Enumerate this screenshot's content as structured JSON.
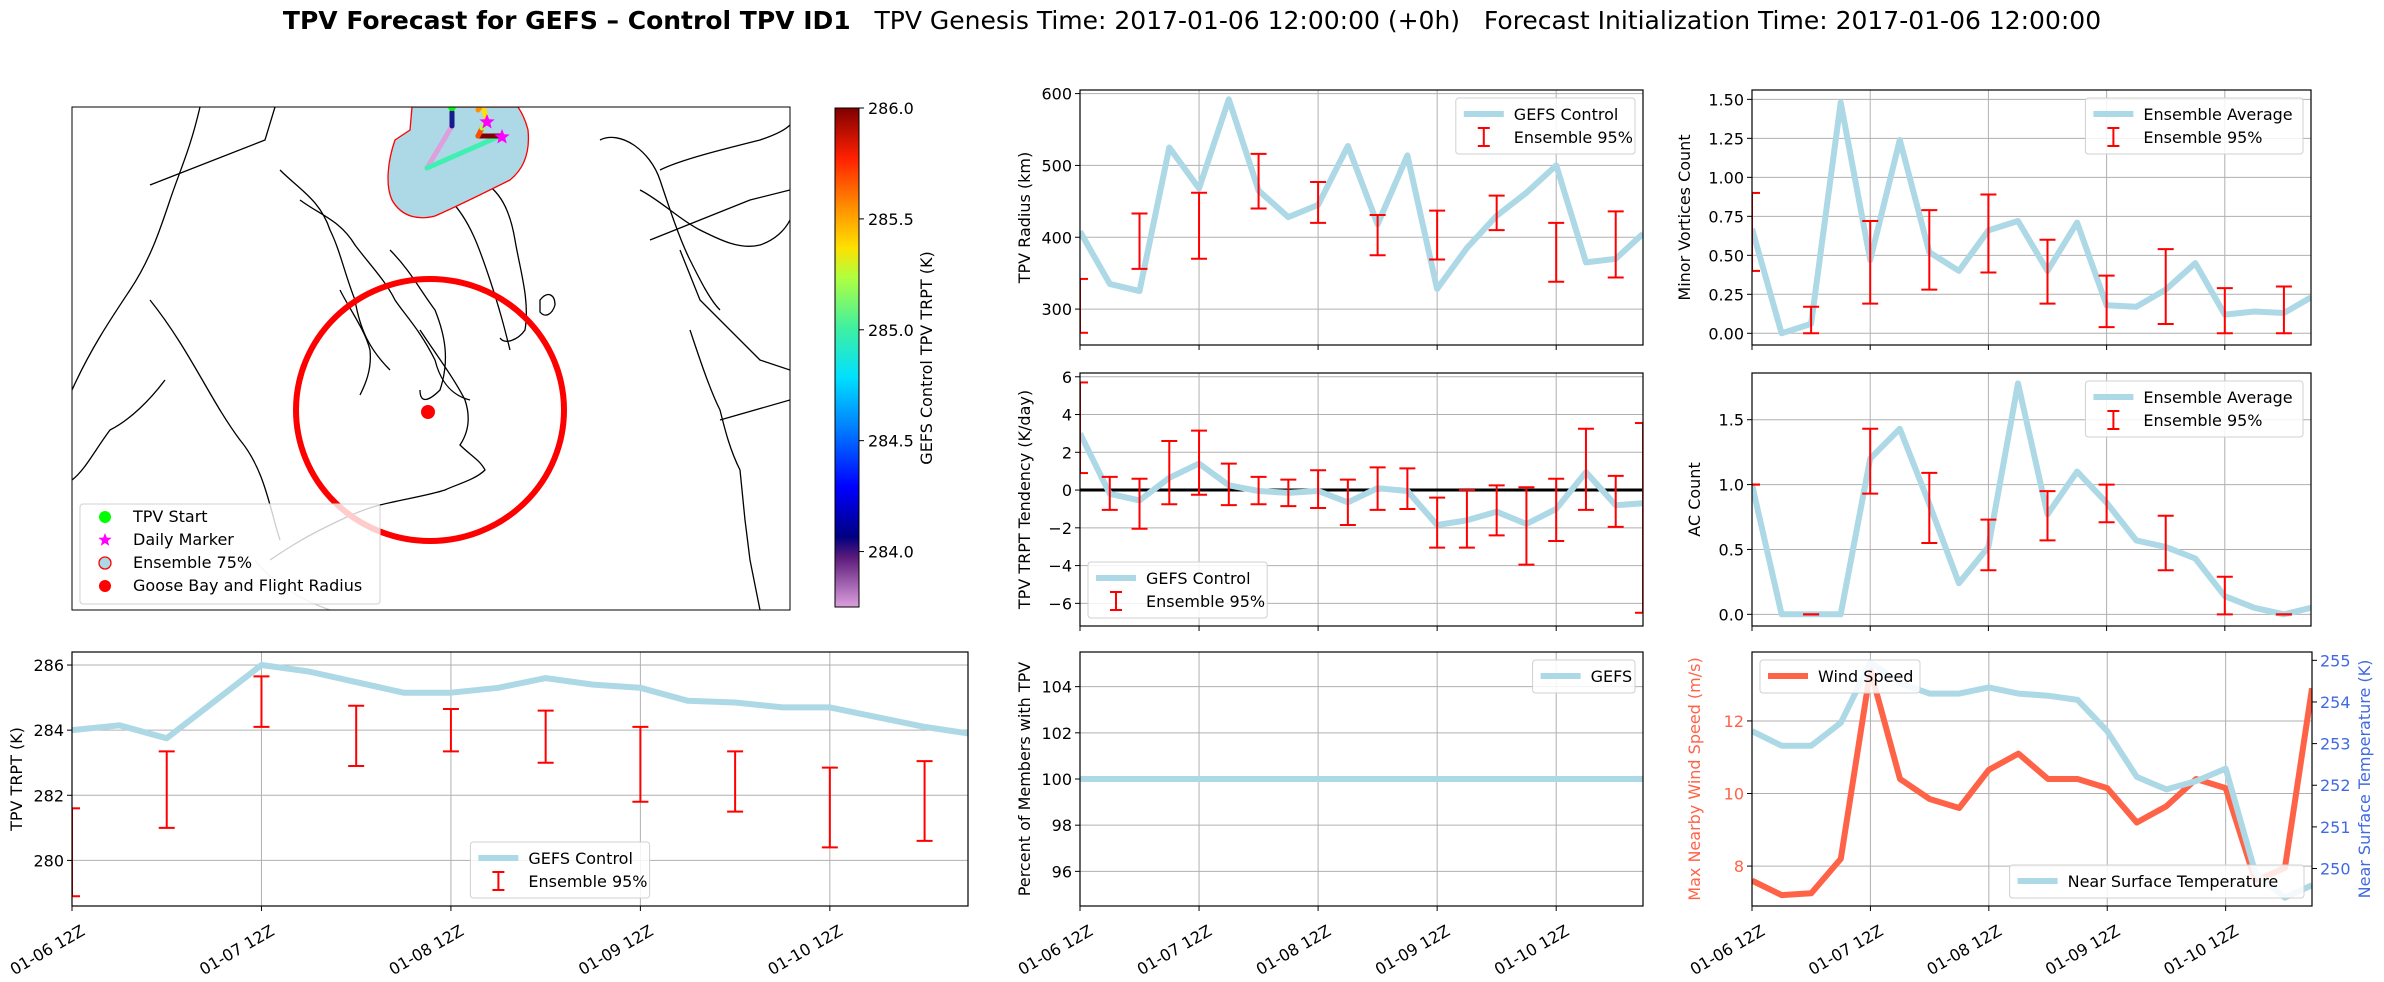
{
  "figure": {
    "title_bold": "TPV Forecast for GEFS – Control TPV ID1",
    "title_genesis": "TPV Genesis Time: 2017-01-06 12:00:00 (+0h)",
    "title_init": "Forecast Initialization Time: 2017-01-06 12:00:00"
  },
  "colors": {
    "line_blue": "#add8e6",
    "error_red": "#ff0000",
    "wind_orange": "#ff6347",
    "temp_axis_blue": "#4169e1",
    "grid": "#b0b0b0"
  },
  "map": {
    "legend": [
      {
        "label": "TPV Start",
        "marker": "green-dot"
      },
      {
        "label": "Daily Marker",
        "marker": "magenta-star"
      },
      {
        "label": "Ensemble 75%",
        "marker": "lightblue-circle"
      },
      {
        "label": "Goose Bay and Flight Radius",
        "marker": "red-dot"
      }
    ],
    "colorbar": {
      "label": "GEFS Control TPV TRPT (K)",
      "ticks": [
        "284.0",
        "284.5",
        "285.0",
        "285.5",
        "286.0"
      ],
      "tick_values": [
        284.0,
        284.5,
        285.0,
        285.5,
        286.0
      ],
      "range": [
        283.75,
        286.0
      ]
    }
  },
  "chart_data": [
    {
      "id": "trpt",
      "type": "line",
      "title": "",
      "xlabel": "",
      "ylabel": "TPV TRPT (K)",
      "x_unit": "hours since 2017-01-06 12Z",
      "xlim": [
        0,
        113.5
      ],
      "ylim": [
        278.6,
        286.4
      ],
      "yticks": [
        280,
        282,
        284,
        286
      ],
      "xticks": [
        0,
        24,
        48,
        72,
        96
      ],
      "xticklabels": [
        "01-06 12Z",
        "01-07 12Z",
        "01-08 12Z",
        "01-09 12Z",
        "01-10 12Z"
      ],
      "grid": true,
      "legend_position": "bottom-center",
      "legend": [
        "GEFS Control",
        "Ensemble 95%"
      ],
      "series": [
        {
          "name": "GEFS Control",
          "x": [
            0,
            6,
            12,
            24,
            30,
            42,
            48,
            54,
            60,
            66,
            72,
            78,
            84,
            90,
            96,
            108,
            113.5
          ],
          "values": [
            284.0,
            284.15,
            283.75,
            286.0,
            285.8,
            285.15,
            285.15,
            285.3,
            285.6,
            285.4,
            285.3,
            284.9,
            284.85,
            284.7,
            284.7,
            284.1,
            283.9
          ]
        }
      ],
      "errorbars": {
        "name": "Ensemble 95%",
        "x": [
          0,
          12,
          24,
          36,
          48,
          60,
          72,
          84,
          96,
          108
        ],
        "low": [
          278.9,
          281.0,
          284.1,
          282.9,
          283.35,
          283.0,
          281.8,
          281.5,
          280.4,
          280.6
        ],
        "high": [
          281.6,
          283.35,
          285.65,
          284.75,
          284.65,
          284.6,
          284.1,
          283.35,
          282.85,
          283.05
        ]
      }
    },
    {
      "id": "radius",
      "type": "line",
      "ylabel": "TPV Radius (km)",
      "xlim": [
        0,
        113.5
      ],
      "ylim": [
        250,
        605
      ],
      "yticks": [
        300,
        400,
        500,
        600
      ],
      "xticks": [
        0,
        24,
        48,
        72,
        96
      ],
      "xticklabels": [],
      "grid": true,
      "legend_position": "top-right",
      "legend": [
        "GEFS Control",
        "Ensemble 95%"
      ],
      "series": [
        {
          "name": "GEFS Control",
          "x": [
            0,
            6,
            12,
            18,
            24,
            30,
            36,
            42,
            48,
            54,
            60,
            66,
            72,
            78,
            84,
            90,
            96,
            102,
            108,
            113.5
          ],
          "values": [
            408,
            335,
            325,
            525,
            468,
            592,
            465,
            428,
            445,
            527,
            418,
            514,
            328,
            385,
            430,
            462,
            500,
            365,
            370,
            405
          ]
        }
      ],
      "errorbars": {
        "name": "Ensemble 95%",
        "x": [
          0,
          12,
          24,
          36,
          48,
          60,
          72,
          84,
          96,
          108
        ],
        "low": [
          267,
          356,
          370,
          440,
          420,
          375,
          369,
          410,
          338,
          344
        ],
        "high": [
          342,
          433,
          462,
          516,
          477,
          431,
          437,
          458,
          420,
          436
        ]
      }
    },
    {
      "id": "tendency",
      "type": "line",
      "ylabel": "TPV TRPT Tendency (K/day)",
      "xlim": [
        0,
        113.5
      ],
      "ylim": [
        -7.2,
        6.2
      ],
      "yticks": [
        -6,
        -4,
        -2,
        0,
        2,
        4,
        6
      ],
      "xticks": [
        0,
        24,
        48,
        72,
        96
      ],
      "xticklabels": [],
      "grid": true,
      "zero_line": true,
      "legend_position": "bottom-left",
      "legend": [
        "GEFS Control",
        "Ensemble 95%"
      ],
      "series": [
        {
          "name": "GEFS Control",
          "x": [
            0,
            6,
            12,
            18,
            24,
            30,
            36,
            42,
            48,
            54,
            60,
            66,
            72,
            78,
            84,
            90,
            96,
            102,
            108,
            113.5
          ],
          "values": [
            3.0,
            -0.2,
            -0.55,
            0.65,
            1.4,
            0.25,
            -0.05,
            -0.15,
            -0.05,
            -0.65,
            0.1,
            -0.05,
            -1.85,
            -1.6,
            -1.15,
            -1.8,
            -1.0,
            0.95,
            -0.8,
            -0.7
          ]
        }
      ],
      "errorbars": {
        "name": "Ensemble 95%",
        "x": [
          0,
          6,
          12,
          18,
          24,
          30,
          36,
          42,
          48,
          54,
          60,
          66,
          72,
          78,
          84,
          90,
          96,
          102,
          108,
          113.5
        ],
        "low": [
          0.9,
          -1.05,
          -2.05,
          -0.75,
          -0.25,
          -0.8,
          -0.75,
          -0.85,
          -0.95,
          -1.85,
          -1.05,
          -1.0,
          -3.05,
          -3.05,
          -2.4,
          -3.95,
          -2.7,
          -1.05,
          -1.95,
          -6.5
        ],
        "high": [
          5.7,
          0.7,
          0.6,
          2.6,
          3.15,
          1.4,
          0.7,
          0.55,
          1.05,
          0.55,
          1.2,
          1.15,
          -0.4,
          0.0,
          0.25,
          0.15,
          0.6,
          3.25,
          0.75,
          3.55
        ]
      }
    },
    {
      "id": "members",
      "type": "line",
      "ylabel": "Percent of Members with TPV",
      "xlim": [
        0,
        113.5
      ],
      "ylim": [
        94.5,
        105.5
      ],
      "yticks": [
        96,
        98,
        100,
        102,
        104
      ],
      "xticks": [
        0,
        24,
        48,
        72,
        96
      ],
      "xticklabels": [
        "01-06 12Z",
        "01-07 12Z",
        "01-08 12Z",
        "01-09 12Z",
        "01-10 12Z"
      ],
      "grid": true,
      "legend_position": "top-right",
      "legend": [
        "GEFS"
      ],
      "series": [
        {
          "name": "GEFS",
          "x": [
            0,
            113.5
          ],
          "values": [
            100,
            100
          ]
        }
      ]
    },
    {
      "id": "minor",
      "type": "line",
      "ylabel": "Minor Vortices Count",
      "xlim": [
        0,
        113.5
      ],
      "ylim": [
        -0.075,
        1.56
      ],
      "yticks": [
        0.0,
        0.25,
        0.5,
        0.75,
        1.0,
        1.25,
        1.5
      ],
      "yticklabels": [
        "0.00",
        "0.25",
        "0.50",
        "0.75",
        "1.00",
        "1.25",
        "1.50"
      ],
      "xticks": [
        0,
        24,
        48,
        72,
        96
      ],
      "xticklabels": [],
      "grid": true,
      "legend_position": "top-right",
      "legend": [
        "Ensemble Average",
        "Ensemble 95%"
      ],
      "series": [
        {
          "name": "Ensemble Average",
          "x": [
            0,
            6,
            12,
            18,
            24,
            30,
            36,
            42,
            48,
            54,
            60,
            66,
            72,
            78,
            84,
            90,
            96,
            102,
            108,
            113.5
          ],
          "values": [
            0.67,
            0.0,
            0.06,
            1.48,
            0.47,
            1.24,
            0.52,
            0.4,
            0.66,
            0.72,
            0.4,
            0.71,
            0.18,
            0.17,
            0.28,
            0.45,
            0.12,
            0.14,
            0.13,
            0.23
          ]
        }
      ],
      "errorbars": {
        "name": "Ensemble 95%",
        "x": [
          0,
          12,
          24,
          36,
          48,
          60,
          72,
          84,
          96,
          108
        ],
        "low": [
          0.4,
          0.0,
          0.19,
          0.28,
          0.39,
          0.19,
          0.04,
          0.06,
          0.0,
          0.0
        ],
        "high": [
          0.9,
          0.17,
          0.72,
          0.79,
          0.89,
          0.6,
          0.37,
          0.54,
          0.29,
          0.3
        ]
      }
    },
    {
      "id": "ac",
      "type": "line",
      "ylabel": "AC Count",
      "xlim": [
        0,
        113.5
      ],
      "ylim": [
        -0.09,
        1.86
      ],
      "yticks": [
        0.0,
        0.5,
        1.0,
        1.5
      ],
      "yticklabels": [
        "0.0",
        "0.5",
        "1.0",
        "1.5"
      ],
      "xticks": [
        0,
        24,
        48,
        72,
        96
      ],
      "xticklabels": [],
      "grid": true,
      "legend_position": "top-right",
      "legend": [
        "Ensemble Average",
        "Ensemble 95%"
      ],
      "series": [
        {
          "name": "Ensemble Average",
          "x": [
            0,
            6,
            12,
            18,
            24,
            30,
            36,
            42,
            48,
            54,
            60,
            66,
            72,
            78,
            84,
            90,
            96,
            102,
            108,
            113.5
          ],
          "values": [
            1.0,
            0.0,
            0.0,
            0.0,
            1.2,
            1.43,
            0.85,
            0.24,
            0.52,
            1.78,
            0.77,
            1.1,
            0.86,
            0.57,
            0.52,
            0.43,
            0.14,
            0.05,
            0.0,
            0.05
          ]
        }
      ],
      "errorbars": {
        "name": "Ensemble 95%",
        "x": [
          0,
          12,
          24,
          36,
          48,
          60,
          72,
          84,
          96,
          108
        ],
        "low": [
          1.0,
          0.0,
          0.93,
          0.55,
          0.34,
          0.57,
          0.71,
          0.34,
          0.0,
          0.0
        ],
        "high": [
          1.0,
          0.0,
          1.43,
          1.09,
          0.73,
          0.95,
          1.0,
          0.76,
          0.29,
          0.0
        ]
      }
    },
    {
      "id": "wind_temp",
      "type": "line",
      "ylabel": "Max Nearby Wind Speed (m/s)",
      "ylabel_right": "Near Surface Temperature (K)",
      "xlim": [
        0,
        113.5
      ],
      "ylim": [
        6.9,
        13.9
      ],
      "ylim_right": [
        249.1,
        255.2
      ],
      "yticks": [
        8,
        10,
        12
      ],
      "yticks_right": [
        250,
        251,
        252,
        253,
        254,
        255
      ],
      "xticks": [
        0,
        24,
        48,
        72,
        96
      ],
      "xticklabels": [
        "01-06 12Z",
        "01-07 12Z",
        "01-08 12Z",
        "01-09 12Z",
        "01-10 12Z"
      ],
      "grid": true,
      "legend": [
        "Wind Speed",
        "Near Surface Temperature"
      ],
      "legend_positions": [
        "top-left",
        "bottom-right"
      ],
      "series": [
        {
          "name": "Wind Speed",
          "axis": "left",
          "x": [
            0,
            6,
            12,
            18,
            24,
            30,
            36,
            42,
            48,
            54,
            60,
            66,
            72,
            78,
            84,
            90,
            96,
            102,
            108,
            113.5
          ],
          "values": [
            7.6,
            7.2,
            7.25,
            8.2,
            13.4,
            10.4,
            9.85,
            9.6,
            10.65,
            11.1,
            10.4,
            10.4,
            10.15,
            9.2,
            9.65,
            10.4,
            10.15,
            7.6,
            7.95,
            12.9
          ]
        },
        {
          "name": "Near Surface Temperature",
          "axis": "right",
          "x": [
            0,
            6,
            12,
            18,
            24,
            30,
            36,
            42,
            48,
            54,
            60,
            66,
            72,
            78,
            84,
            90,
            96,
            102,
            108,
            113.5
          ],
          "values": [
            253.3,
            252.95,
            252.95,
            253.5,
            254.95,
            254.45,
            254.2,
            254.2,
            254.35,
            254.2,
            254.15,
            254.05,
            253.3,
            252.2,
            251.9,
            252.1,
            252.4,
            249.9,
            249.3,
            249.6
          ]
        }
      ]
    }
  ]
}
